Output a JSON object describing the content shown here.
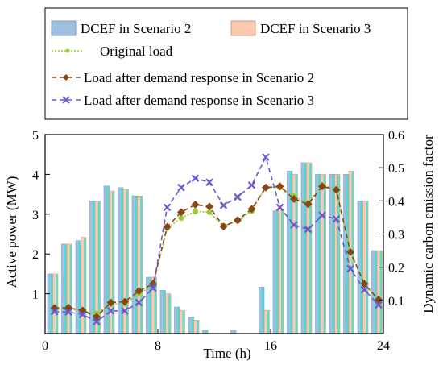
{
  "chart_data": {
    "type": "bar+line",
    "title": "",
    "xlabel": "Time (h)",
    "ylabel_left": "Active power (MW)",
    "ylabel_right": "Dynamic carbon emission factor",
    "xlim": [
      0,
      24
    ],
    "ylim_left": [
      0,
      5
    ],
    "ylim_right": [
      0,
      0.6
    ],
    "xticks": [
      "0",
      "8",
      "16",
      "24"
    ],
    "yticks_left": [
      "1",
      "2",
      "3",
      "4",
      "5"
    ],
    "yticks_right": [
      "0.1",
      "0.2",
      "0.3",
      "0.4",
      "0.5",
      "0.6"
    ],
    "legend": [
      "DCEF in Scenario 2",
      "DCEF in Scenario 3",
      "Original load",
      "Load after demand response  in Scenario 2",
      "Load after demand response  in Scenario 3"
    ],
    "legend_position": "top (above plot, boxed)",
    "hours": [
      1,
      2,
      3,
      4,
      5,
      6,
      7,
      8,
      9,
      10,
      11,
      12,
      13,
      14,
      15,
      16,
      17,
      18,
      19,
      20,
      21,
      22,
      23,
      24
    ],
    "bar_series": [
      {
        "name": "DCEF in Scenario 2",
        "axis": "right",
        "fill": "#9fc0e0",
        "edge": "#7c9cc4",
        "values": [
          0.18,
          0.27,
          0.28,
          0.4,
          0.445,
          0.44,
          0.415,
          0.17,
          0.13,
          0.08,
          0.05,
          0.01,
          0,
          0.01,
          0.0,
          0.14,
          0.37,
          0.49,
          0.515,
          0.48,
          0.48,
          0.48,
          0.4,
          0.25
        ]
      },
      {
        "name": "DCEF in Scenario 3",
        "axis": "right",
        "fill": "#ffc8b0",
        "edge": "#c8a080",
        "values": [
          0.18,
          0.27,
          0.29,
          0.4,
          0.43,
          0.435,
          0.415,
          0.17,
          0.12,
          0.07,
          0.04,
          0,
          0,
          0,
          0,
          0.07,
          0.375,
          0.48,
          0.515,
          0.48,
          0.48,
          0.49,
          0.4,
          0.25
        ]
      }
    ],
    "bar_overlay_color": "#40e0d0",
    "line_series": [
      {
        "name": "Original load",
        "axis": "left",
        "color": "#9acd32",
        "style": "dotted",
        "marker": "dot",
        "values": [
          0.6,
          0.62,
          0.57,
          0.5,
          0.74,
          0.76,
          1.0,
          1.22,
          2.65,
          2.9,
          3.07,
          3.05,
          2.7,
          2.83,
          3.08,
          3.68,
          3.67,
          3.45,
          3.28,
          3.73,
          3.62,
          2.05,
          1.25,
          0.82
        ]
      },
      {
        "name": "Load after demand response  in Scenario 2",
        "axis": "left",
        "color": "#8b4513",
        "style": "dashed",
        "marker": "diamond",
        "values": [
          0.64,
          0.65,
          0.58,
          0.42,
          0.78,
          0.8,
          1.07,
          1.25,
          2.68,
          3.05,
          3.24,
          3.19,
          2.69,
          2.85,
          3.13,
          3.67,
          3.7,
          3.38,
          3.25,
          3.7,
          3.61,
          2.05,
          1.25,
          0.85
        ]
      },
      {
        "name": "Load after demand response  in Scenario 3",
        "axis": "left",
        "color": "#6a5acd",
        "style": "dashed",
        "marker": "x",
        "values": [
          0.55,
          0.54,
          0.48,
          0.3,
          0.57,
          0.57,
          0.78,
          1.14,
          3.17,
          3.67,
          3.9,
          3.8,
          3.22,
          3.43,
          3.73,
          4.43,
          3.17,
          2.73,
          2.62,
          2.97,
          2.88,
          1.63,
          1.1,
          0.72
        ]
      }
    ]
  }
}
